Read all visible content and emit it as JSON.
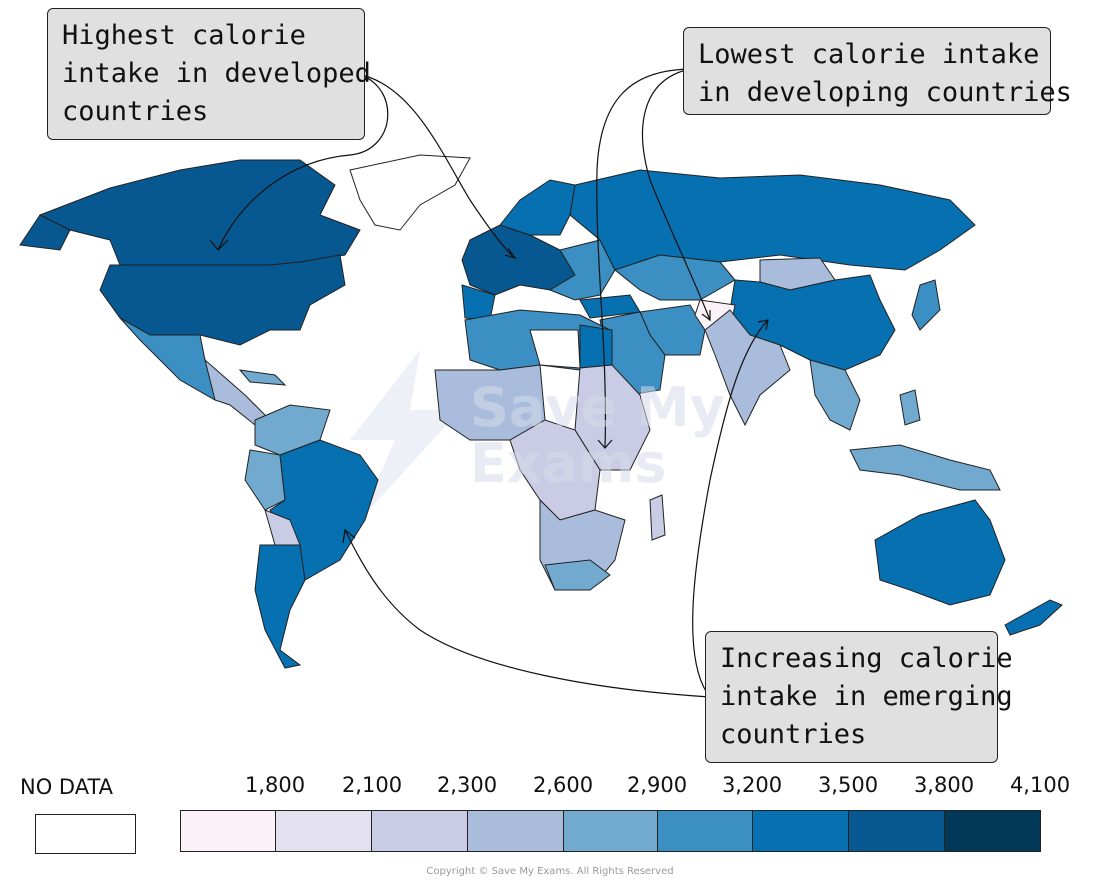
{
  "callouts": {
    "developed": [
      "Highest calorie",
      "intake in developed",
      "countries"
    ],
    "developing": [
      "Lowest calorie intake",
      "in developing countries"
    ],
    "emerging": [
      "Increasing calorie",
      "intake in emerging",
      "countries"
    ]
  },
  "legend": {
    "no_data_label": "NO DATA",
    "ticks": [
      "1,800",
      "2,100",
      "2,300",
      "2,600",
      "2,900",
      "3,200",
      "3,500",
      "3,800",
      "4,100"
    ],
    "colors": [
      "#fbf1f8",
      "#e3e0f0",
      "#c9cce4",
      "#a9bcdc",
      "#72a9cf",
      "#3b8fc2",
      "#0670b0",
      "#075791",
      "#023858"
    ],
    "no_data_color": "#ffffff"
  },
  "watermark": [
    "Save My",
    "Exams"
  ],
  "copyright": "Copyright © Save My Exams. All Rights Reserved"
}
